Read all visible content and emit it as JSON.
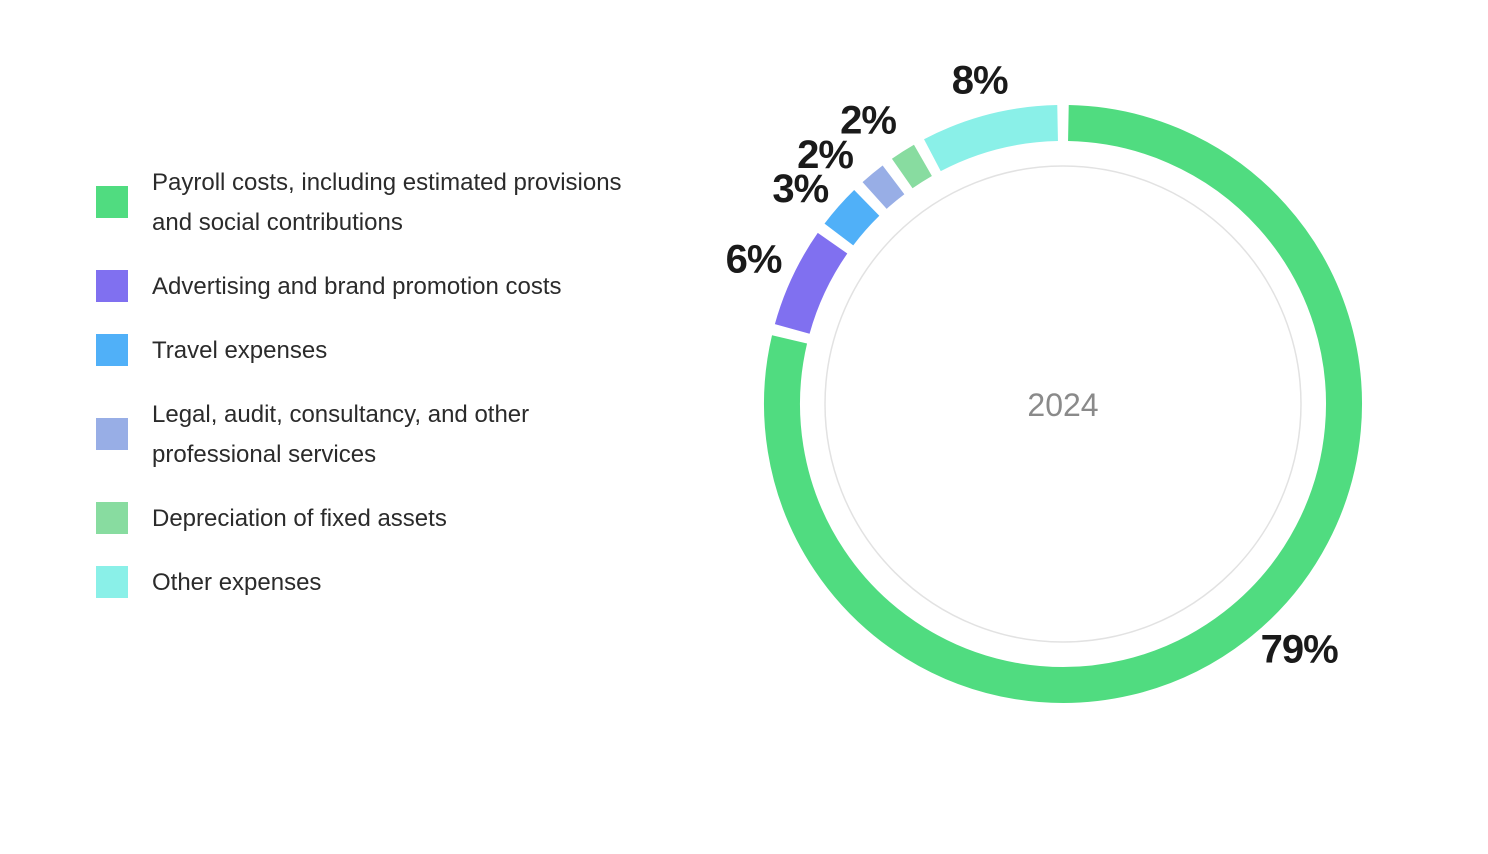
{
  "chart_data": {
    "type": "pie",
    "center_label": "2024",
    "categories": [
      "Payroll costs, including estimated provisions\nand social contributions",
      "Advertising and brand promotion costs",
      "Travel expenses",
      "Legal, audit, consultancy, and other\nprofessional services",
      "Depreciation of fixed assets",
      "Other expenses"
    ],
    "values": [
      79,
      6,
      3,
      2,
      2,
      8
    ],
    "value_labels": [
      "79%",
      "6%",
      "3%",
      "2%",
      "2%",
      "8%"
    ],
    "colors": [
      "#50DC80",
      "#8070F0",
      "#50B0F8",
      "#98AEE6",
      "#88DCA0",
      "#8AF0E8"
    ],
    "legend_placement": "left"
  }
}
